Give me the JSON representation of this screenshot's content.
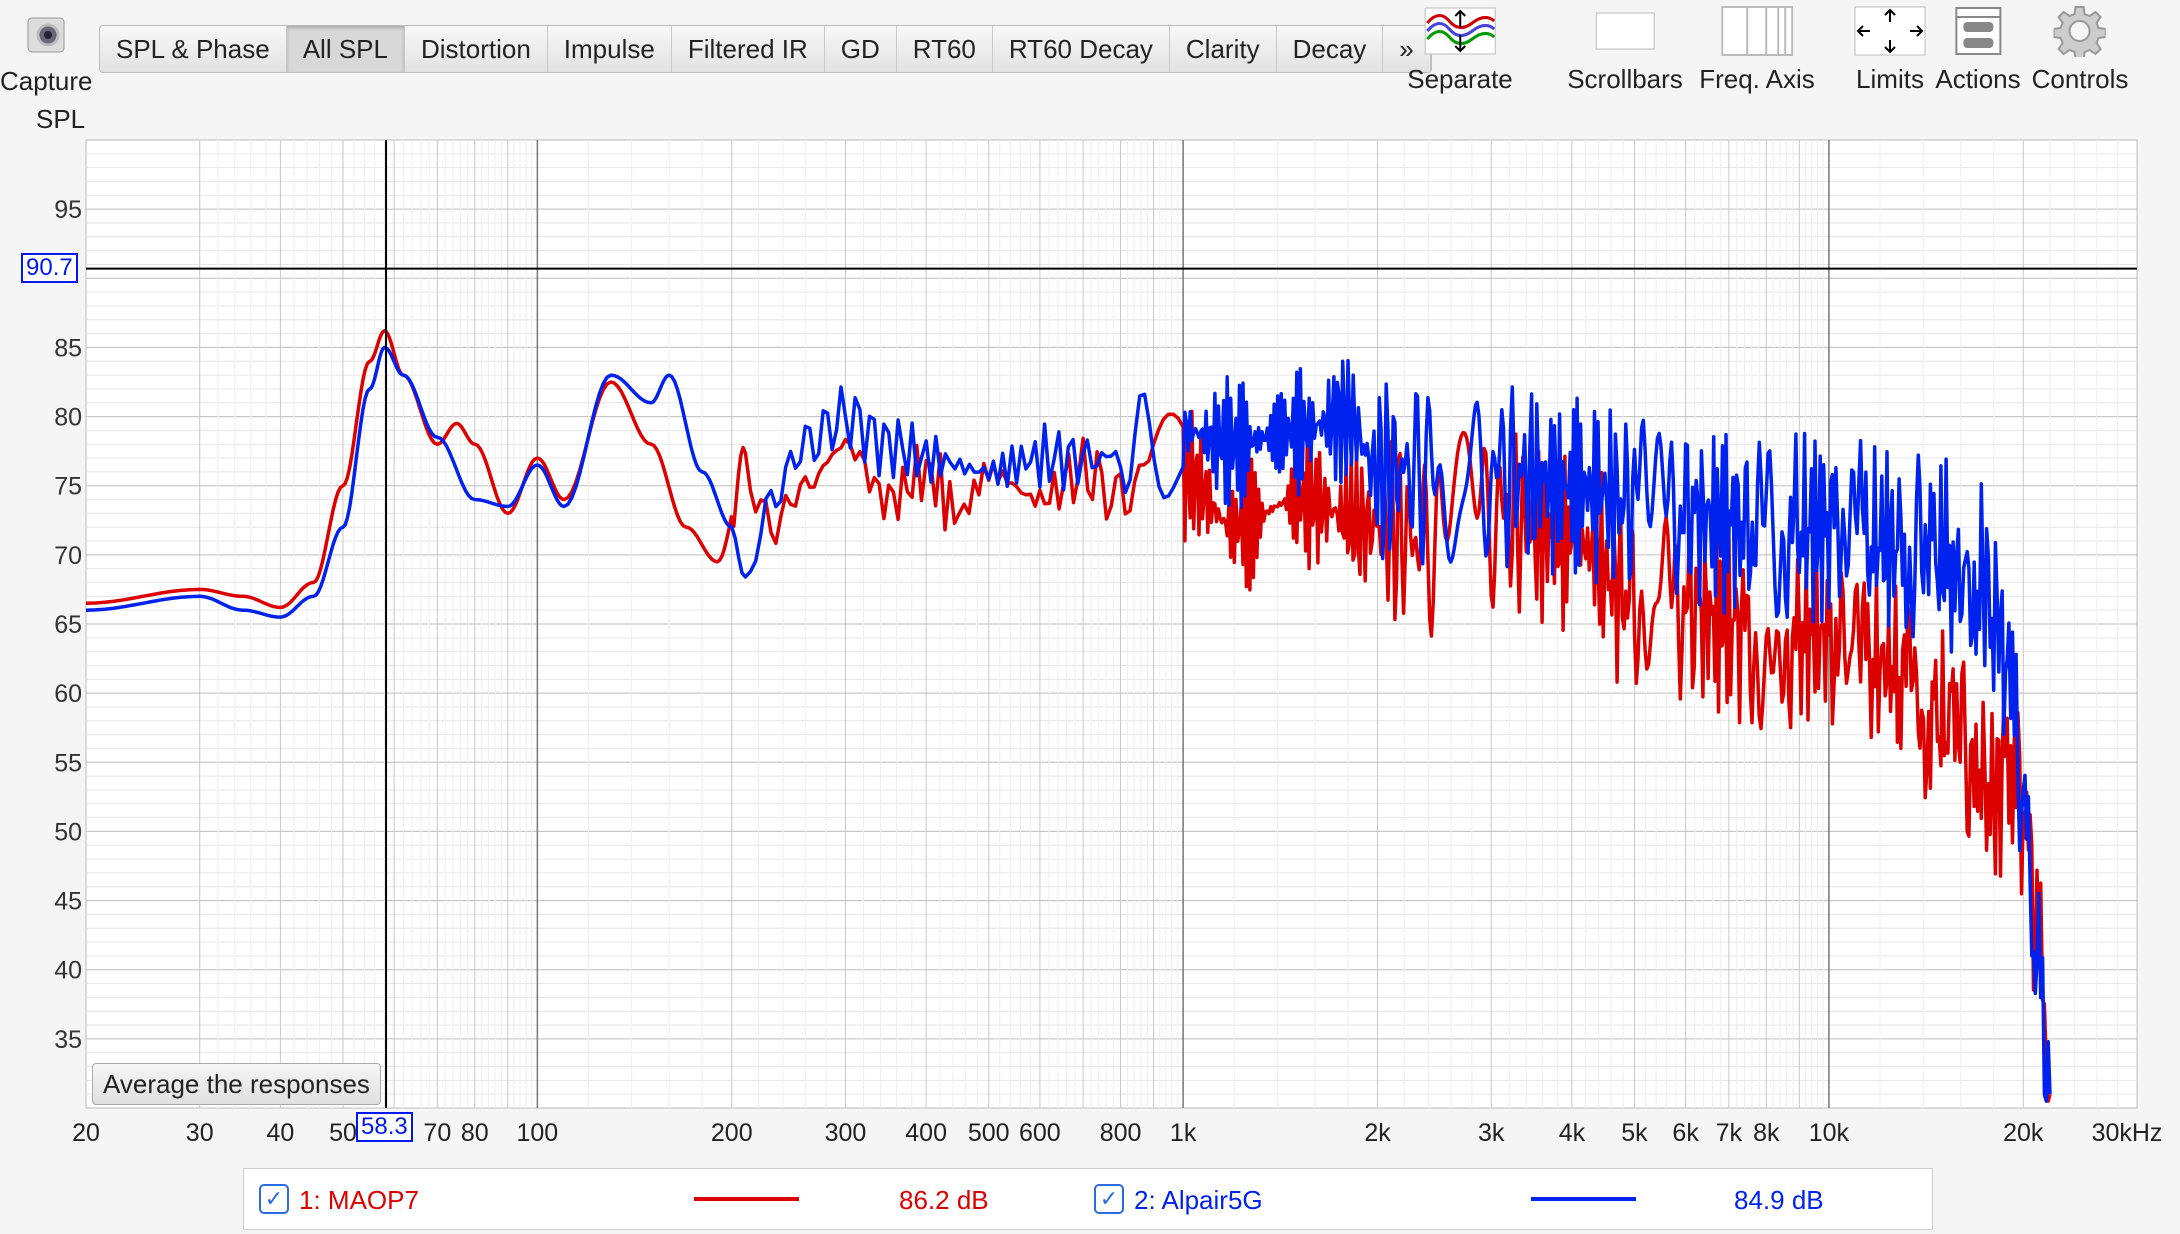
{
  "toolbar": {
    "capture_label": "Capture",
    "tabs": [
      {
        "label": "SPL & Phase"
      },
      {
        "label": "All SPL",
        "active": true
      },
      {
        "label": "Distortion"
      },
      {
        "label": "Impulse"
      },
      {
        "label": "Filtered IR"
      },
      {
        "label": "GD"
      },
      {
        "label": "RT60"
      },
      {
        "label": "RT60 Decay"
      },
      {
        "label": "Clarity"
      },
      {
        "label": "Decay"
      },
      {
        "label": "»"
      }
    ],
    "tools": [
      {
        "label": "Separate",
        "icon": "separate-icon"
      },
      {
        "label": "Scrollbars",
        "icon": "scrollbars-icon"
      },
      {
        "label": "Freq. Axis",
        "icon": "freq-axis-icon"
      },
      {
        "label": "Limits",
        "icon": "limits-icon"
      },
      {
        "label": "Actions",
        "icon": "actions-icon"
      },
      {
        "label": "Controls",
        "icon": "gear-icon"
      }
    ]
  },
  "average_button": "Average the responses",
  "cursor": {
    "freq_readout": "58.3",
    "spl_readout": "90.7",
    "freq": 58.3,
    "spl": 90.7
  },
  "legend": [
    {
      "label": "1: MAOP7",
      "value": "86.2 dB",
      "color": "#dd0000",
      "checked": true
    },
    {
      "label": "2: Alpair5G",
      "value": "84.9 dB",
      "color": "#0022ee",
      "checked": true
    }
  ],
  "chart_data": {
    "type": "line",
    "ylabel": "SPL",
    "xscale": "log",
    "xlim": [
      20,
      30000
    ],
    "ylim": [
      30,
      100
    ],
    "grid": true,
    "xticks": [
      [
        20,
        "20"
      ],
      [
        30,
        "30"
      ],
      [
        40,
        "40"
      ],
      [
        50,
        "50"
      ],
      [
        70,
        "70"
      ],
      [
        80,
        "80"
      ],
      [
        100,
        "100"
      ],
      [
        200,
        "200"
      ],
      [
        300,
        "300"
      ],
      [
        400,
        "400"
      ],
      [
        500,
        "500"
      ],
      [
        600,
        "600"
      ],
      [
        800,
        "800"
      ],
      [
        1000,
        "1k"
      ],
      [
        2000,
        "2k"
      ],
      [
        3000,
        "3k"
      ],
      [
        4000,
        "4k"
      ],
      [
        5000,
        "5k"
      ],
      [
        6000,
        "6k"
      ],
      [
        7000,
        "7k"
      ],
      [
        8000,
        "8k"
      ],
      [
        10000,
        "10k"
      ],
      [
        20000,
        "20k"
      ],
      [
        30000,
        "30kHz"
      ]
    ],
    "yticks": [
      35,
      40,
      45,
      50,
      55,
      60,
      65,
      70,
      75,
      80,
      85,
      95
    ],
    "series": [
      {
        "name": "1: MAOP7",
        "color": "#dd0000",
        "points": [
          [
            20,
            66.5
          ],
          [
            30,
            67.5
          ],
          [
            35,
            67
          ],
          [
            40,
            66.2
          ],
          [
            45,
            68
          ],
          [
            50,
            75
          ],
          [
            55,
            84
          ],
          [
            58,
            86.2
          ],
          [
            62,
            83
          ],
          [
            70,
            78
          ],
          [
            75,
            79.5
          ],
          [
            80,
            78
          ],
          [
            90,
            73
          ],
          [
            100,
            77
          ],
          [
            110,
            74
          ],
          [
            130,
            82.5
          ],
          [
            150,
            78
          ],
          [
            170,
            72
          ],
          [
            190,
            69.5
          ],
          [
            210,
            76
          ],
          [
            230,
            72
          ],
          [
            260,
            75
          ],
          [
            300,
            78
          ],
          [
            350,
            74
          ],
          [
            400,
            76
          ],
          [
            450,
            73
          ],
          [
            500,
            76
          ],
          [
            600,
            74
          ],
          [
            700,
            76
          ],
          [
            800,
            74
          ],
          [
            900,
            78
          ],
          [
            1000,
            76
          ],
          [
            1200,
            72
          ],
          [
            1500,
            74
          ],
          [
            2000,
            72
          ],
          [
            2500,
            71
          ],
          [
            3000,
            73
          ],
          [
            4000,
            71
          ],
          [
            5000,
            67
          ],
          [
            6000,
            66
          ],
          [
            7000,
            65
          ],
          [
            8000,
            64
          ],
          [
            10000,
            64
          ],
          [
            12000,
            62
          ],
          [
            15000,
            58
          ],
          [
            17000,
            55
          ],
          [
            18000,
            52
          ],
          [
            19000,
            56
          ],
          [
            20000,
            52
          ],
          [
            21000,
            42
          ],
          [
            22000,
            31
          ]
        ]
      },
      {
        "name": "2: Alpair5G",
        "color": "#0022ee",
        "points": [
          [
            20,
            66
          ],
          [
            30,
            67
          ],
          [
            35,
            66
          ],
          [
            40,
            65.5
          ],
          [
            45,
            67
          ],
          [
            50,
            72
          ],
          [
            55,
            82
          ],
          [
            58,
            85
          ],
          [
            62,
            83
          ],
          [
            70,
            78.5
          ],
          [
            80,
            74
          ],
          [
            90,
            73.5
          ],
          [
            100,
            76.5
          ],
          [
            110,
            73.5
          ],
          [
            130,
            83
          ],
          [
            150,
            81
          ],
          [
            160,
            83
          ],
          [
            180,
            76
          ],
          [
            200,
            72
          ],
          [
            210,
            68
          ],
          [
            230,
            74
          ],
          [
            260,
            78
          ],
          [
            300,
            80
          ],
          [
            350,
            78
          ],
          [
            400,
            77
          ],
          [
            500,
            76
          ],
          [
            600,
            77
          ],
          [
            800,
            77
          ],
          [
            1000,
            79
          ],
          [
            1200,
            78
          ],
          [
            1500,
            79
          ],
          [
            1800,
            80
          ],
          [
            2000,
            76
          ],
          [
            2500,
            76
          ],
          [
            3000,
            76
          ],
          [
            4000,
            75
          ],
          [
            5000,
            74
          ],
          [
            6000,
            73
          ],
          [
            8000,
            72
          ],
          [
            10000,
            72
          ],
          [
            12000,
            71
          ],
          [
            15000,
            70
          ],
          [
            17000,
            69
          ],
          [
            18000,
            66
          ],
          [
            19000,
            62
          ],
          [
            20000,
            50
          ],
          [
            21000,
            40
          ],
          [
            22000,
            31
          ]
        ]
      }
    ]
  }
}
